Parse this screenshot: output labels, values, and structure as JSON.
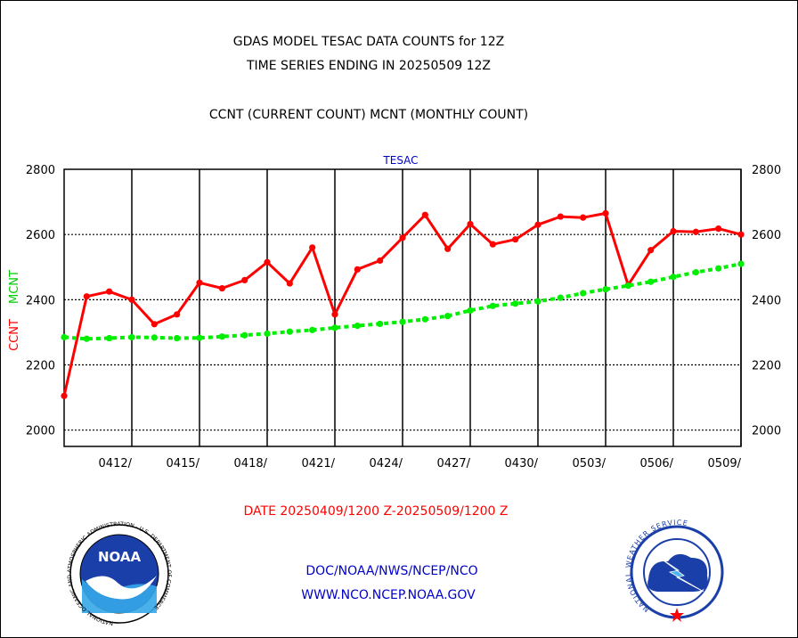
{
  "header": {
    "title_line1": "GDAS MODEL TESAC DATA COUNTS for 12Z",
    "title_line2": "TIME SERIES ENDING IN 20250509 12Z",
    "subtitle": "CCNT (CURRENT COUNT) MCNT (MONTHLY COUNT)"
  },
  "footer": {
    "date_range": "DATE 20250409/1200 Z-20250509/1200 Z",
    "org_line": "DOC/NOAA/NWS/NCEP/NCO",
    "url_line": "WWW.NCO.NCEP.NOAA.GOV",
    "noaa_logo_text": "NOAA",
    "noaa_ring_text": "NATIONAL OCEANIC AND ATMOSPHERIC ADMINISTRATION · U.S. DEPARTMENT OF COMMERCE",
    "nws_ring_text": "NATIONAL WEATHER SERVICE"
  },
  "colors": {
    "ccnt": "#ff0000",
    "mcnt": "#00ee00",
    "title": "#000000",
    "date_text": "#ff0000",
    "org_text": "#0000cc",
    "panel_label": "#0000cc"
  },
  "chart_data": {
    "type": "line",
    "panel_label": "TESAC",
    "ylabel_ccnt": "CCNT",
    "ylabel_mcnt": "MCNT",
    "ylim": [
      1950,
      2800
    ],
    "yticks": [
      2000,
      2200,
      2400,
      2600,
      2800
    ],
    "ytick_labels": [
      "2000",
      "2200",
      "2400",
      "2600",
      "2800"
    ],
    "x_days": 30,
    "x_tick_days": [
      3,
      6,
      9,
      12,
      15,
      18,
      21,
      24,
      27,
      30
    ],
    "x_tick_labels": [
      "0412/",
      "0415/",
      "0418/",
      "0421/",
      "0424/",
      "0427/",
      "0430/",
      "0503/",
      "0506/",
      "0509/"
    ],
    "grid": true,
    "series": [
      {
        "name": "CCNT",
        "values": [
          2105,
          2410,
          2425,
          2400,
          2325,
          2355,
          2452,
          2435,
          2460,
          2515,
          2450,
          2560,
          2355,
          2493,
          2520,
          2590,
          2660,
          2556,
          2632,
          2570,
          2585,
          2630,
          2655,
          2652,
          2665,
          2445,
          2552,
          2610,
          2608,
          2618,
          2600
        ]
      },
      {
        "name": "MCNT",
        "values": [
          2285,
          2280,
          2282,
          2285,
          2284,
          2282,
          2283,
          2287,
          2291,
          2296,
          2302,
          2307,
          2314,
          2320,
          2326,
          2332,
          2340,
          2350,
          2367,
          2381,
          2388,
          2395,
          2406,
          2420,
          2432,
          2443,
          2455,
          2470,
          2484,
          2496,
          2510
        ]
      }
    ]
  }
}
